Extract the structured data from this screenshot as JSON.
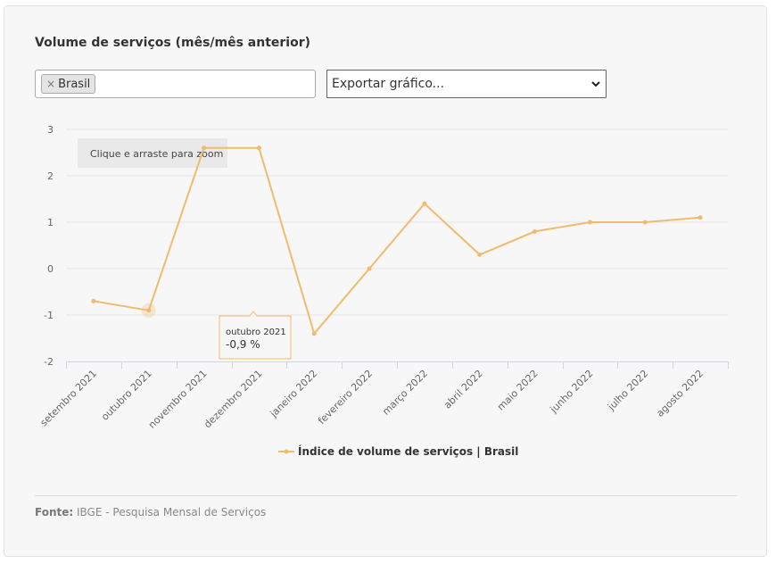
{
  "header": {
    "title": "Volume de serviços (mês/mês anterior)"
  },
  "filters": {
    "tag_remove": "×",
    "tag_label": "Brasil",
    "export_label": "Exportar gráfico...",
    "export_icon": "chevron-down-icon"
  },
  "chart_data": {
    "type": "line",
    "categories": [
      "setembro 2021",
      "outubro 2021",
      "novembro 2021",
      "dezembro 2021",
      "janeiro 2022",
      "fevereiro 2022",
      "março 2022",
      "abril 2022",
      "maio 2022",
      "junho 2022",
      "julho 2022",
      "agosto 2022"
    ],
    "series": [
      {
        "name": "Índice de volume de serviços | Brasil",
        "color": "#f1bb6f",
        "values": [
          -0.7,
          -0.9,
          2.6,
          2.6,
          -1.4,
          0,
          1.4,
          0.3,
          0.8,
          1,
          1,
          1.1
        ]
      }
    ],
    "yticks": [
      "3",
      "2",
      "1",
      "0",
      "-1",
      "-2"
    ],
    "ylim": [
      -2,
      3
    ],
    "grid": true,
    "legend_placement": "bottom-center",
    "zoom_hint": "Clique e arraste para zoom",
    "tooltip": {
      "category": "outubro 2021",
      "value": "-0,9 %"
    }
  },
  "footer": {
    "source_label": "Fonte:",
    "source_text": "IBGE - Pesquisa Mensal de Serviços"
  }
}
